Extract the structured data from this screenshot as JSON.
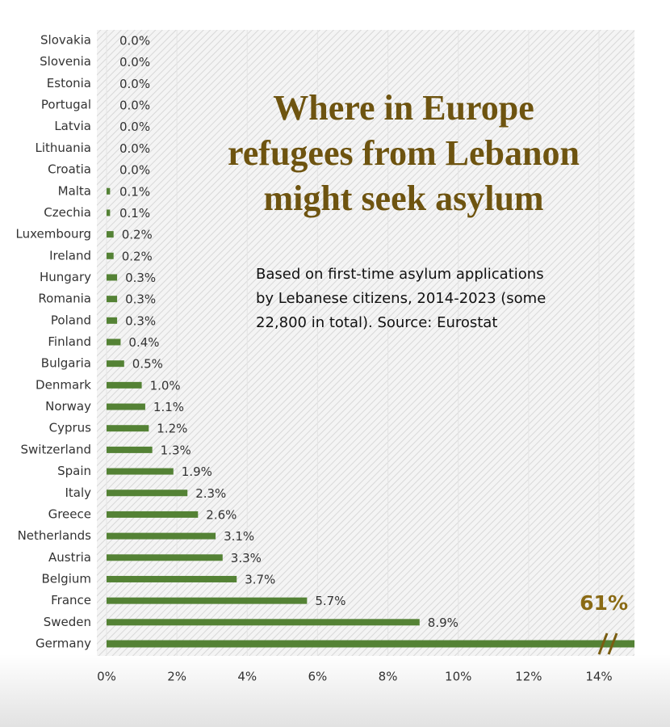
{
  "chart_data": {
    "type": "bar",
    "orientation": "horizontal",
    "title": [
      "Where in Europe",
      "refugees from Lebanon",
      "might seek asylum"
    ],
    "subtitle": [
      "Based on first-time asylum applications",
      "by Lebanese citizens, 2014-2023 (some",
      "22,800 in total). Source: Eurostat"
    ],
    "categories": [
      "Slovakia",
      "Slovenia",
      "Estonia",
      "Portugal",
      "Latvia",
      "Lithuania",
      "Croatia",
      "Malta",
      "Czechia",
      "Luxembourg",
      "Ireland",
      "Hungary",
      "Romania",
      "Poland",
      "Finland",
      "Bulgaria",
      "Denmark",
      "Norway",
      "Cyprus",
      "Switzerland",
      "Spain",
      "Italy",
      "Greece",
      "Netherlands",
      "Austria",
      "Belgium",
      "France",
      "Sweden",
      "Germany"
    ],
    "values": [
      0.0,
      0.0,
      0.0,
      0.0,
      0.0,
      0.0,
      0.0,
      0.1,
      0.1,
      0.2,
      0.2,
      0.3,
      0.3,
      0.3,
      0.4,
      0.5,
      1.0,
      1.1,
      1.2,
      1.3,
      1.9,
      2.3,
      2.6,
      3.1,
      3.3,
      3.7,
      5.7,
      8.9,
      61
    ],
    "value_labels": [
      "0.0%",
      "0.0%",
      "0.0%",
      "0.0%",
      "0.0%",
      "0.0%",
      "0.0%",
      "0.1%",
      "0.1%",
      "0.2%",
      "0.2%",
      "0.3%",
      "0.3%",
      "0.3%",
      "0.4%",
      "0.5%",
      "1.0%",
      "1.1%",
      "1.2%",
      "1.3%",
      "1.9%",
      "2.3%",
      "2.6%",
      "3.1%",
      "3.3%",
      "3.7%",
      "5.7%",
      "8.9%",
      "61%"
    ],
    "color": "#548235",
    "xlim": [
      0,
      15
    ],
    "xticks": [
      {
        "value": 0,
        "label": "0%"
      },
      {
        "value": 2,
        "label": "2%"
      },
      {
        "value": 4,
        "label": "4%"
      },
      {
        "value": 6,
        "label": "6%"
      },
      {
        "value": 8,
        "label": "8%"
      },
      {
        "value": 10,
        "label": "10%"
      },
      {
        "value": 12,
        "label": "12%"
      },
      {
        "value": 14,
        "label": "14%"
      }
    ],
    "grid": true
  }
}
